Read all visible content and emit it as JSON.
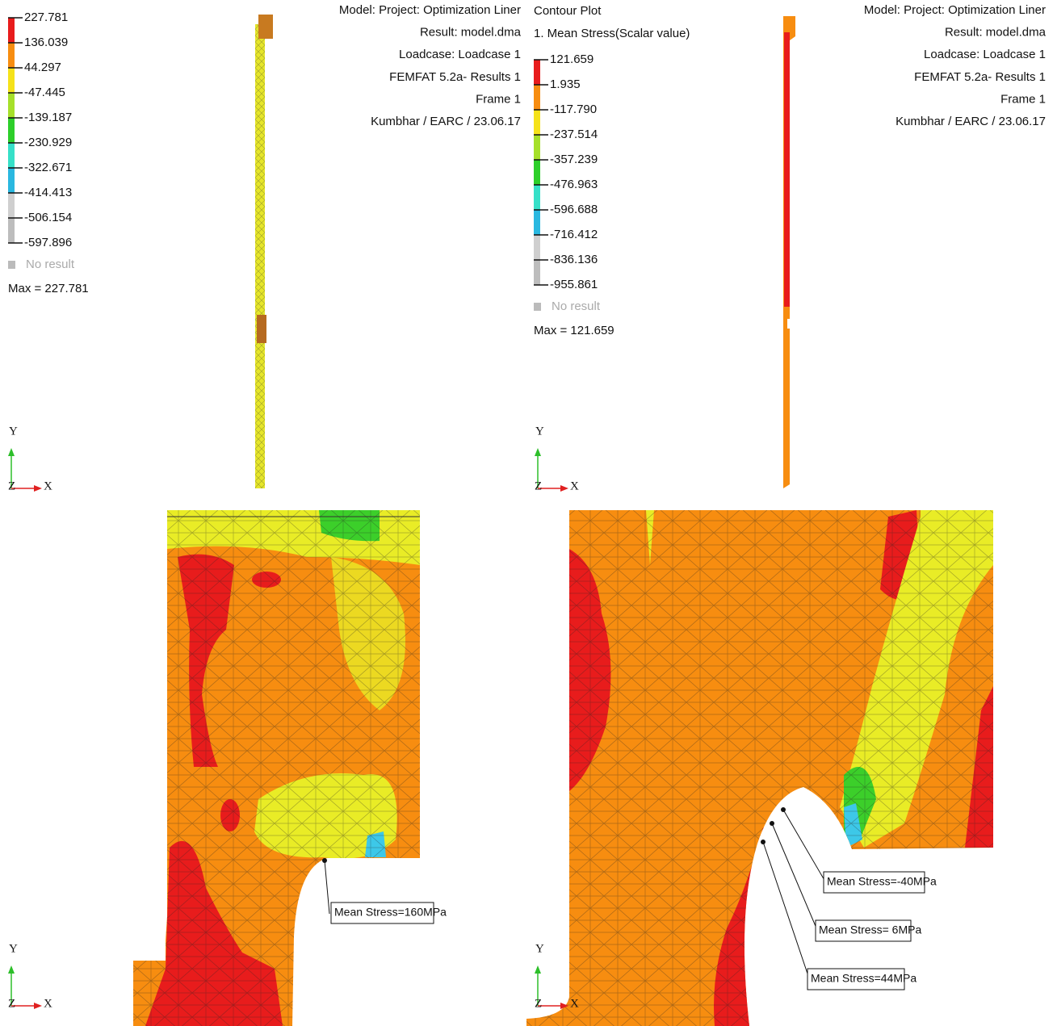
{
  "panels": [
    {
      "legend": {
        "values": [
          "227.781",
          "136.039",
          "44.297",
          "-47.445",
          "-139.187",
          "-230.929",
          "-322.671",
          "-414.413",
          "-506.154",
          "-597.896"
        ],
        "no_result": "No result",
        "max": "Max = 227.781"
      },
      "info": [
        "Model:  Project: Optimization Liner",
        "Result: model.dma",
        "Loadcase: Loadcase 1",
        "FEMFAT 5.2a- Results 1",
        "Frame 1",
        "Kumbhar / EARC / 23.06.17"
      ]
    },
    {
      "title": "Contour Plot",
      "subtitle": "1.  Mean Stress(Scalar value)",
      "legend": {
        "values": [
          "121.659",
          "1.935",
          "-117.790",
          "-237.514",
          "-357.239",
          "-476.963",
          "-596.688",
          "-716.412",
          "-836.136",
          "-955.861"
        ],
        "no_result": "No result",
        "max": "Max = 121.659"
      },
      "info": [
        "Model:  Project: Optimization Liner",
        "Result: model.dma",
        "Loadcase: Loadcase 1",
        "FEMFAT 5.2a- Results 1",
        "Frame 1",
        "Kumbhar / EARC / 23.06.17"
      ]
    }
  ],
  "axes": {
    "y": "Y",
    "z": "Z",
    "x": "X"
  },
  "callouts": [
    "Mean Stress=160MPa",
    "Mean Stress=-40MPa",
    "Mean Stress= 6MPa",
    "Mean Stress=44MPa"
  ]
}
